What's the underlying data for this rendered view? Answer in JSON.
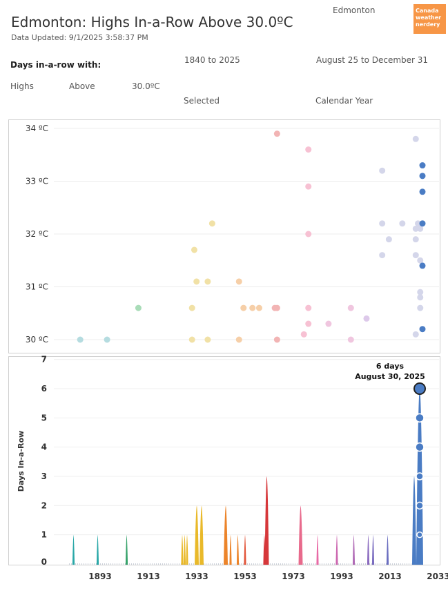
{
  "header": {
    "title": "Edmonton: Highs In-a-Row Above 30.0ºC",
    "updated": "Data Updated: 9/1/2025 3:58:37 PM",
    "city": "Edmonton",
    "logo_lines": [
      "Canada",
      "weather",
      "nerdery"
    ],
    "logo_color": "#f79646"
  },
  "filters": {
    "heading": "Days in-a-row with:",
    "measure": "Highs",
    "comparison": "Above",
    "threshold": "30.0ºC",
    "years": "1840 to 2025",
    "years_label": "Selected",
    "dates": "August 25 to December 31",
    "dates_label": "Calendar Year"
  },
  "chart_data": [
    {
      "type": "scatter",
      "ylim": [
        29.9,
        34.15
      ],
      "xlim": [
        1875,
        2033
      ],
      "y_ticks": [
        "30 ºC",
        "31 ºC",
        "32 ºC",
        "33 ºC",
        "34 ºC"
      ],
      "points": [
        {
          "x": 1880,
          "y": 30.0,
          "c": "#b5dce0"
        },
        {
          "x": 1892,
          "y": 30.0,
          "c": "#b5dce0"
        },
        {
          "x": 1906,
          "y": 30.6,
          "c": "#a9dcb8"
        },
        {
          "x": 1930,
          "y": 30.0,
          "c": "#f1e1a6"
        },
        {
          "x": 1930,
          "y": 30.6,
          "c": "#f1e1a6"
        },
        {
          "x": 1931,
          "y": 31.7,
          "c": "#f1e1a6"
        },
        {
          "x": 1932,
          "y": 31.1,
          "c": "#f1e1a6"
        },
        {
          "x": 1937,
          "y": 30.0,
          "c": "#f1e1a6"
        },
        {
          "x": 1937,
          "y": 31.1,
          "c": "#f1e1a6"
        },
        {
          "x": 1939,
          "y": 32.2,
          "c": "#f1e1a6"
        },
        {
          "x": 1951,
          "y": 30.0,
          "c": "#f6cfa8"
        },
        {
          "x": 1951,
          "y": 31.1,
          "c": "#f6cfa8"
        },
        {
          "x": 1953,
          "y": 30.6,
          "c": "#f6cfa8"
        },
        {
          "x": 1957,
          "y": 30.6,
          "c": "#f6cfa8"
        },
        {
          "x": 1960,
          "y": 30.6,
          "c": "#f6cfa8"
        },
        {
          "x": 1967,
          "y": 30.6,
          "c": "#f2b4b4"
        },
        {
          "x": 1968,
          "y": 30.6,
          "c": "#f2b4b4"
        },
        {
          "x": 1968,
          "y": 30.0,
          "c": "#f2b4b4"
        },
        {
          "x": 1968,
          "y": 33.9,
          "c": "#f2b4b4"
        },
        {
          "x": 1980,
          "y": 30.1,
          "c": "#f7c1d3"
        },
        {
          "x": 1982,
          "y": 30.3,
          "c": "#f7c1d3"
        },
        {
          "x": 1982,
          "y": 30.6,
          "c": "#f7c1d3"
        },
        {
          "x": 1982,
          "y": 32.0,
          "c": "#f7c1d3"
        },
        {
          "x": 1982,
          "y": 32.9,
          "c": "#f7c1d3"
        },
        {
          "x": 1982,
          "y": 33.6,
          "c": "#f7c1d3"
        },
        {
          "x": 1991,
          "y": 30.3,
          "c": "#f0c6df"
        },
        {
          "x": 2001,
          "y": 30.0,
          "c": "#f0c6df"
        },
        {
          "x": 2001,
          "y": 30.6,
          "c": "#f0c6df"
        },
        {
          "x": 2008,
          "y": 30.4,
          "c": "#ddc9ea"
        },
        {
          "x": 2015,
          "y": 31.6,
          "c": "#d4d6ea"
        },
        {
          "x": 2015,
          "y": 32.2,
          "c": "#d4d6ea"
        },
        {
          "x": 2015,
          "y": 33.2,
          "c": "#d4d6ea"
        },
        {
          "x": 2018,
          "y": 31.9,
          "c": "#d4d6ea"
        },
        {
          "x": 2024,
          "y": 32.2,
          "c": "#d4d6ea"
        },
        {
          "x": 2030,
          "y": 30.1,
          "c": "#d4d6ea"
        },
        {
          "x": 2030,
          "y": 31.6,
          "c": "#d4d6ea"
        },
        {
          "x": 2030,
          "y": 31.9,
          "c": "#d4d6ea"
        },
        {
          "x": 2030,
          "y": 32.1,
          "c": "#d4d6ea"
        },
        {
          "x": 2030,
          "y": 33.8,
          "c": "#d4d6ea"
        },
        {
          "x": 2031,
          "y": 32.2,
          "c": "#d4d6ea"
        },
        {
          "x": 2032,
          "y": 30.6,
          "c": "#d4d6ea"
        },
        {
          "x": 2032,
          "y": 30.8,
          "c": "#d4d6ea"
        },
        {
          "x": 2032,
          "y": 30.9,
          "c": "#d4d6ea"
        },
        {
          "x": 2032,
          "y": 31.5,
          "c": "#d4d6ea"
        },
        {
          "x": 2032,
          "y": 32.1,
          "c": "#d4d6ea"
        },
        {
          "x": 2033,
          "y": 30.2,
          "c": "#4a7cc4"
        },
        {
          "x": 2033,
          "y": 31.4,
          "c": "#4a7cc4"
        },
        {
          "x": 2033,
          "y": 32.2,
          "c": "#4a7cc4"
        },
        {
          "x": 2033,
          "y": 32.8,
          "c": "#4a7cc4"
        },
        {
          "x": 2033,
          "y": 33.1,
          "c": "#4a7cc4"
        },
        {
          "x": 2033,
          "y": 33.3,
          "c": "#4a7cc4"
        }
      ]
    },
    {
      "type": "bar",
      "ylabel": "Days In-a-Row",
      "ylim": [
        -0.15,
        7.2
      ],
      "xlim": [
        1875,
        2033
      ],
      "y_ticks": [
        "0",
        "1",
        "2",
        "3",
        "4",
        "5",
        "6",
        "7"
      ],
      "x_ticks": [
        "1893",
        "1913",
        "1933",
        "1953",
        "1973",
        "1993",
        "2013",
        "2033"
      ],
      "annotation": {
        "line1": "6 days",
        "line2": "August 30, 2025"
      },
      "spikes": [
        {
          "x": 1888,
          "v": 1,
          "c": "#2aa8a8"
        },
        {
          "x": 1898,
          "v": 1,
          "c": "#2aa8a8"
        },
        {
          "x": 1910,
          "v": 1,
          "c": "#36a26a"
        },
        {
          "x": 1933,
          "v": 1,
          "c": "#e9b92a"
        },
        {
          "x": 1934,
          "v": 1,
          "c": "#e9b92a"
        },
        {
          "x": 1935,
          "v": 1,
          "c": "#e9b92a"
        },
        {
          "x": 1939,
          "v": 2,
          "c": "#e9b92a"
        },
        {
          "x": 1941,
          "v": 2,
          "c": "#e9b92a"
        },
        {
          "x": 1951,
          "v": 2,
          "c": "#ec842a"
        },
        {
          "x": 1953,
          "v": 1,
          "c": "#ec842a"
        },
        {
          "x": 1956,
          "v": 1,
          "c": "#ec842a"
        },
        {
          "x": 1959,
          "v": 1,
          "c": "#e2553a"
        },
        {
          "x": 1967,
          "v": 1,
          "c": "#d6373a"
        },
        {
          "x": 1968,
          "v": 3,
          "c": "#d6373a"
        },
        {
          "x": 1982,
          "v": 2,
          "c": "#e86a8c"
        },
        {
          "x": 1989,
          "v": 1,
          "c": "#e86aa6"
        },
        {
          "x": 1997,
          "v": 1,
          "c": "#cc67b0"
        },
        {
          "x": 2004,
          "v": 1,
          "c": "#b06ab6"
        },
        {
          "x": 2010,
          "v": 1,
          "c": "#8a6abf"
        },
        {
          "x": 2012,
          "v": 1,
          "c": "#7a6cc0"
        },
        {
          "x": 2018,
          "v": 1,
          "c": "#6a6ec0"
        },
        {
          "x": 2029,
          "v": 3,
          "c": "#4a7cc4"
        },
        {
          "x": 2031,
          "v": 1,
          "c": "#4a7cc4"
        },
        {
          "x": 2033,
          "v": 6,
          "c": "#4a7cc4"
        }
      ]
    }
  ]
}
